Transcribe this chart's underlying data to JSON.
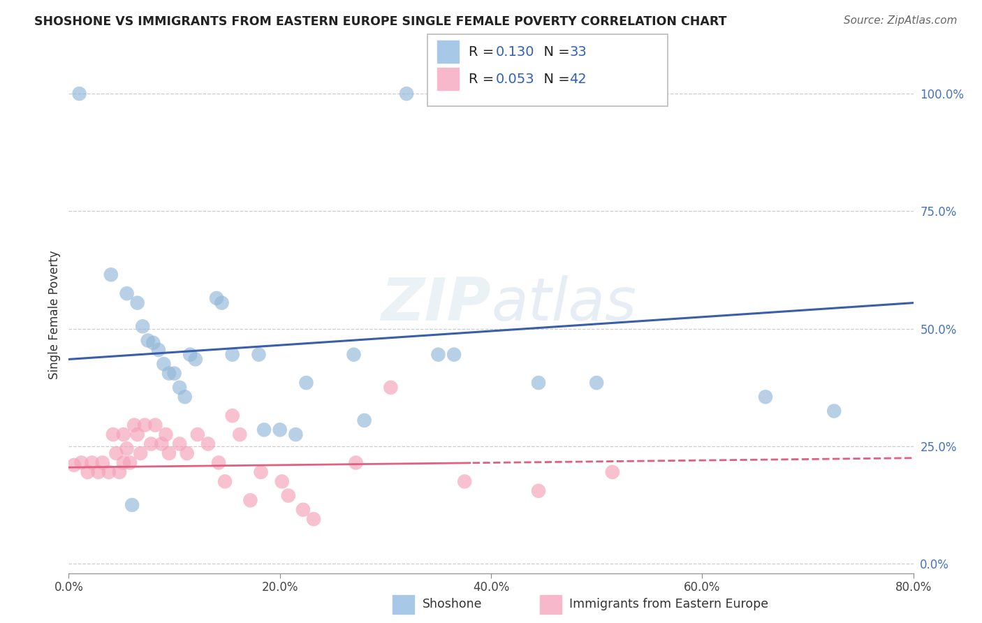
{
  "title": "SHOSHONE VS IMMIGRANTS FROM EASTERN EUROPE SINGLE FEMALE POVERTY CORRELATION CHART",
  "source": "Source: ZipAtlas.com",
  "ylabel": "Single Female Poverty",
  "xlim": [
    0.0,
    0.8
  ],
  "ylim": [
    -0.02,
    1.08
  ],
  "xticks": [
    0.0,
    0.2,
    0.4,
    0.6,
    0.8
  ],
  "xticklabels": [
    "0.0%",
    "20.0%",
    "40.0%",
    "60.0%",
    "80.0%"
  ],
  "yticks_right": [
    0.0,
    0.25,
    0.5,
    0.75,
    1.0
  ],
  "yticklabels_right": [
    "0.0%",
    "25.0%",
    "50.0%",
    "75.0%",
    "100.0%"
  ],
  "shoshone_color": "#93b8d8",
  "immigrants_color": "#f4a0b8",
  "trend_shoshone_color": "#3a5faa",
  "trend_immigrants_color": "#e06080",
  "legend_shoshone_color": "#a8c8e8",
  "legend_immigrants_color": "#f8b8cc",
  "watermark": "ZIPatlas",
  "shoshone_x": [
    0.01,
    0.32,
    0.04,
    0.055,
    0.065,
    0.07,
    0.075,
    0.08,
    0.085,
    0.09,
    0.095,
    0.1,
    0.105,
    0.11,
    0.115,
    0.12,
    0.14,
    0.145,
    0.155,
    0.18,
    0.185,
    0.2,
    0.215,
    0.225,
    0.27,
    0.28,
    0.35,
    0.365,
    0.445,
    0.5,
    0.66,
    0.725,
    0.06
  ],
  "shoshone_y": [
    1.0,
    1.0,
    0.615,
    0.575,
    0.555,
    0.505,
    0.475,
    0.47,
    0.455,
    0.425,
    0.405,
    0.405,
    0.375,
    0.355,
    0.445,
    0.435,
    0.565,
    0.555,
    0.445,
    0.445,
    0.285,
    0.285,
    0.275,
    0.385,
    0.445,
    0.305,
    0.445,
    0.445,
    0.385,
    0.385,
    0.355,
    0.325,
    0.125
  ],
  "immigrants_x": [
    0.005,
    0.012,
    0.018,
    0.022,
    0.028,
    0.032,
    0.038,
    0.042,
    0.045,
    0.048,
    0.052,
    0.055,
    0.058,
    0.062,
    0.065,
    0.068,
    0.072,
    0.078,
    0.082,
    0.088,
    0.092,
    0.095,
    0.105,
    0.112,
    0.122,
    0.132,
    0.142,
    0.148,
    0.155,
    0.162,
    0.172,
    0.182,
    0.202,
    0.208,
    0.222,
    0.232,
    0.272,
    0.305,
    0.375,
    0.445,
    0.515,
    0.052
  ],
  "immigrants_y": [
    0.21,
    0.215,
    0.195,
    0.215,
    0.195,
    0.215,
    0.195,
    0.275,
    0.235,
    0.195,
    0.275,
    0.245,
    0.215,
    0.295,
    0.275,
    0.235,
    0.295,
    0.255,
    0.295,
    0.255,
    0.275,
    0.235,
    0.255,
    0.235,
    0.275,
    0.255,
    0.215,
    0.175,
    0.315,
    0.275,
    0.135,
    0.195,
    0.175,
    0.145,
    0.115,
    0.095,
    0.215,
    0.375,
    0.175,
    0.155,
    0.195,
    0.215
  ]
}
